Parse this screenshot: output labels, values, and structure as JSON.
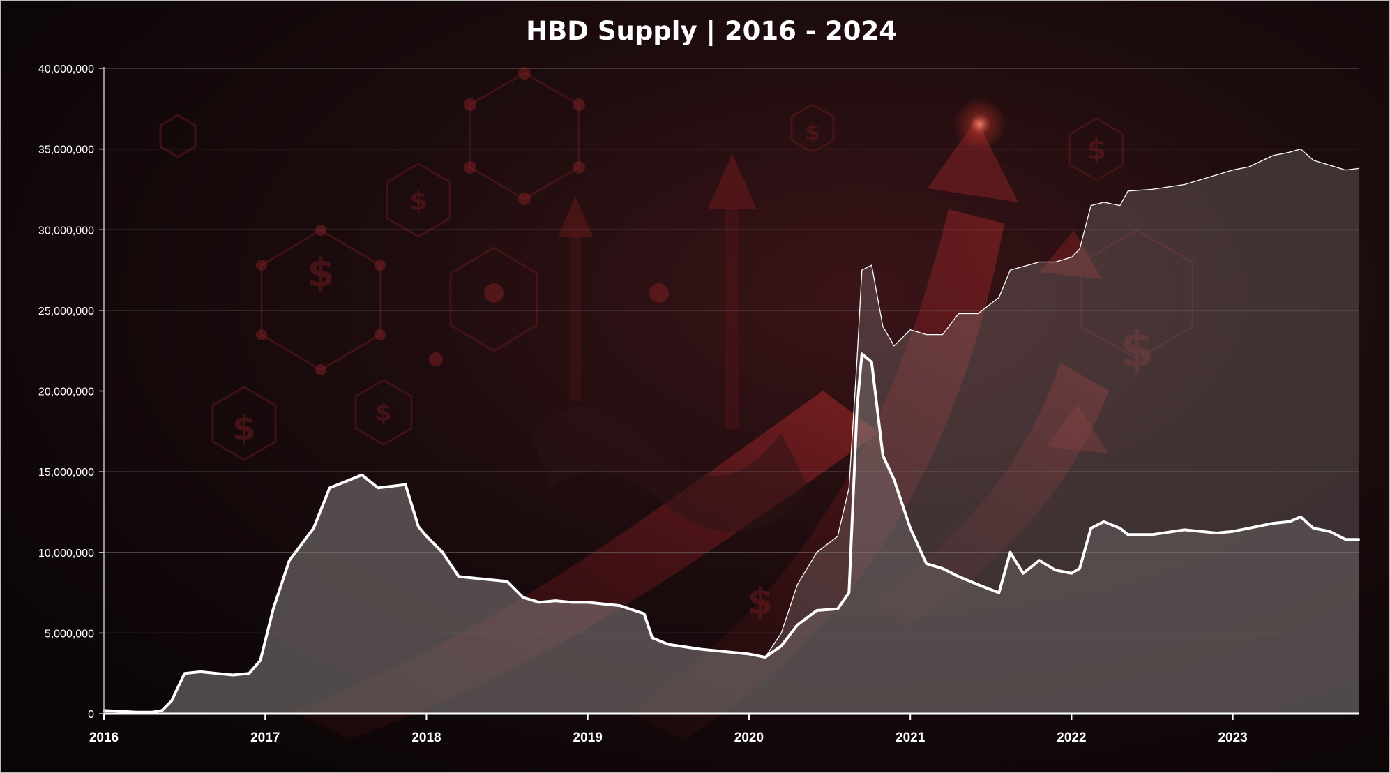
{
  "chart_data": {
    "type": "area",
    "title": "HBD Supply | 2016 - 2024",
    "xlabel": "",
    "ylabel": "",
    "xlim": [
      2016.0,
      2023.78
    ],
    "ylim": [
      0,
      40000000
    ],
    "grid": true,
    "legend": "none",
    "y_ticks": [
      {
        "value": 0,
        "label": "0"
      },
      {
        "value": 5000000,
        "label": "5,000,000"
      },
      {
        "value": 10000000,
        "label": "10,000,000"
      },
      {
        "value": 15000000,
        "label": "15,000,000"
      },
      {
        "value": 20000000,
        "label": "20,000,000"
      },
      {
        "value": 25000000,
        "label": "25,000,000"
      },
      {
        "value": 30000000,
        "label": "30,000,000"
      },
      {
        "value": 35000000,
        "label": "35,000,000"
      },
      {
        "value": 40000000,
        "label": "40,000,000"
      }
    ],
    "x_ticks": [
      {
        "value": 2016,
        "label": "2016"
      },
      {
        "value": 2017,
        "label": "2017"
      },
      {
        "value": 2018,
        "label": "2018"
      },
      {
        "value": 2019,
        "label": "2019"
      },
      {
        "value": 2020,
        "label": "2020"
      },
      {
        "value": 2021,
        "label": "2021"
      },
      {
        "value": 2022,
        "label": "2022"
      },
      {
        "value": 2023,
        "label": "2023"
      }
    ],
    "series": [
      {
        "color": "#ffffff",
        "fill": "#8a8282",
        "fill_opacity": 0.32,
        "line_width": 1.3,
        "points": [
          [
            2016.0,
            200000
          ],
          [
            2016.1,
            150000
          ],
          [
            2016.2,
            100000
          ],
          [
            2016.3,
            100000
          ],
          [
            2016.36,
            200000
          ],
          [
            2016.42,
            800000
          ],
          [
            2016.5,
            2500000
          ],
          [
            2016.6,
            2600000
          ],
          [
            2016.7,
            2500000
          ],
          [
            2016.8,
            2400000
          ],
          [
            2016.9,
            2500000
          ],
          [
            2016.97,
            3300000
          ],
          [
            2017.05,
            6500000
          ],
          [
            2017.15,
            9500000
          ],
          [
            2017.3,
            11500000
          ],
          [
            2017.4,
            14000000
          ],
          [
            2017.6,
            14800000
          ],
          [
            2017.7,
            14000000
          ],
          [
            2017.87,
            14200000
          ],
          [
            2017.95,
            11600000
          ],
          [
            2018.0,
            11000000
          ],
          [
            2018.1,
            10000000
          ],
          [
            2018.2,
            8500000
          ],
          [
            2018.3,
            8400000
          ],
          [
            2018.5,
            8200000
          ],
          [
            2018.6,
            7200000
          ],
          [
            2018.7,
            6900000
          ],
          [
            2018.8,
            7000000
          ],
          [
            2018.9,
            6900000
          ],
          [
            2019.0,
            6900000
          ],
          [
            2019.2,
            6700000
          ],
          [
            2019.35,
            6200000
          ],
          [
            2019.4,
            4700000
          ],
          [
            2019.5,
            4300000
          ],
          [
            2019.7,
            4000000
          ],
          [
            2019.9,
            3800000
          ],
          [
            2020.0,
            3700000
          ],
          [
            2020.1,
            3500000
          ],
          [
            2020.2,
            5000000
          ],
          [
            2020.3,
            8000000
          ],
          [
            2020.42,
            10000000
          ],
          [
            2020.55,
            11000000
          ],
          [
            2020.62,
            14000000
          ],
          [
            2020.67,
            22000000
          ],
          [
            2020.7,
            27500000
          ],
          [
            2020.76,
            27800000
          ],
          [
            2020.83,
            24000000
          ],
          [
            2020.9,
            22800000
          ],
          [
            2021.0,
            23800000
          ],
          [
            2021.1,
            23500000
          ],
          [
            2021.2,
            23500000
          ],
          [
            2021.3,
            24800000
          ],
          [
            2021.42,
            24800000
          ],
          [
            2021.55,
            25800000
          ],
          [
            2021.62,
            27500000
          ],
          [
            2021.8,
            28000000
          ],
          [
            2021.9,
            28000000
          ],
          [
            2022.0,
            28300000
          ],
          [
            2022.05,
            28800000
          ],
          [
            2022.12,
            31500000
          ],
          [
            2022.2,
            31700000
          ],
          [
            2022.3,
            31500000
          ],
          [
            2022.35,
            32400000
          ],
          [
            2022.5,
            32500000
          ],
          [
            2022.7,
            32800000
          ],
          [
            2022.9,
            33400000
          ],
          [
            2023.0,
            33700000
          ],
          [
            2023.1,
            33900000
          ],
          [
            2023.25,
            34600000
          ],
          [
            2023.35,
            34800000
          ],
          [
            2023.42,
            35000000
          ],
          [
            2023.5,
            34300000
          ],
          [
            2023.6,
            34000000
          ],
          [
            2023.7,
            33700000
          ],
          [
            2023.78,
            33800000
          ]
        ]
      },
      {
        "color": "#ffffff",
        "fill": "#8a8282",
        "fill_opacity": 0.32,
        "line_width": 4,
        "points": [
          [
            2016.0,
            200000
          ],
          [
            2016.1,
            150000
          ],
          [
            2016.2,
            100000
          ],
          [
            2016.3,
            100000
          ],
          [
            2016.36,
            200000
          ],
          [
            2016.42,
            800000
          ],
          [
            2016.5,
            2500000
          ],
          [
            2016.6,
            2600000
          ],
          [
            2016.7,
            2500000
          ],
          [
            2016.8,
            2400000
          ],
          [
            2016.9,
            2500000
          ],
          [
            2016.97,
            3300000
          ],
          [
            2017.05,
            6500000
          ],
          [
            2017.15,
            9500000
          ],
          [
            2017.3,
            11500000
          ],
          [
            2017.4,
            14000000
          ],
          [
            2017.6,
            14800000
          ],
          [
            2017.7,
            14000000
          ],
          [
            2017.87,
            14200000
          ],
          [
            2017.95,
            11600000
          ],
          [
            2018.0,
            11000000
          ],
          [
            2018.1,
            10000000
          ],
          [
            2018.2,
            8500000
          ],
          [
            2018.3,
            8400000
          ],
          [
            2018.5,
            8200000
          ],
          [
            2018.6,
            7200000
          ],
          [
            2018.7,
            6900000
          ],
          [
            2018.8,
            7000000
          ],
          [
            2018.9,
            6900000
          ],
          [
            2019.0,
            6900000
          ],
          [
            2019.2,
            6700000
          ],
          [
            2019.35,
            6200000
          ],
          [
            2019.4,
            4700000
          ],
          [
            2019.5,
            4300000
          ],
          [
            2019.7,
            4000000
          ],
          [
            2019.9,
            3800000
          ],
          [
            2020.0,
            3700000
          ],
          [
            2020.1,
            3500000
          ],
          [
            2020.2,
            4200000
          ],
          [
            2020.3,
            5500000
          ],
          [
            2020.42,
            6400000
          ],
          [
            2020.55,
            6500000
          ],
          [
            2020.62,
            7500000
          ],
          [
            2020.67,
            19000000
          ],
          [
            2020.7,
            22300000
          ],
          [
            2020.76,
            21800000
          ],
          [
            2020.83,
            16000000
          ],
          [
            2020.9,
            14500000
          ],
          [
            2021.0,
            11500000
          ],
          [
            2021.1,
            9300000
          ],
          [
            2021.2,
            9000000
          ],
          [
            2021.3,
            8500000
          ],
          [
            2021.42,
            8000000
          ],
          [
            2021.55,
            7500000
          ],
          [
            2021.62,
            10000000
          ],
          [
            2021.7,
            8700000
          ],
          [
            2021.8,
            9500000
          ],
          [
            2021.9,
            8900000
          ],
          [
            2022.0,
            8700000
          ],
          [
            2022.05,
            9000000
          ],
          [
            2022.12,
            11500000
          ],
          [
            2022.2,
            11900000
          ],
          [
            2022.3,
            11500000
          ],
          [
            2022.35,
            11100000
          ],
          [
            2022.5,
            11100000
          ],
          [
            2022.7,
            11400000
          ],
          [
            2022.9,
            11200000
          ],
          [
            2023.0,
            11300000
          ],
          [
            2023.1,
            11500000
          ],
          [
            2023.25,
            11800000
          ],
          [
            2023.35,
            11900000
          ],
          [
            2023.42,
            12200000
          ],
          [
            2023.5,
            11500000
          ],
          [
            2023.6,
            11300000
          ],
          [
            2023.7,
            10800000
          ],
          [
            2023.78,
            10800000
          ]
        ]
      }
    ]
  }
}
